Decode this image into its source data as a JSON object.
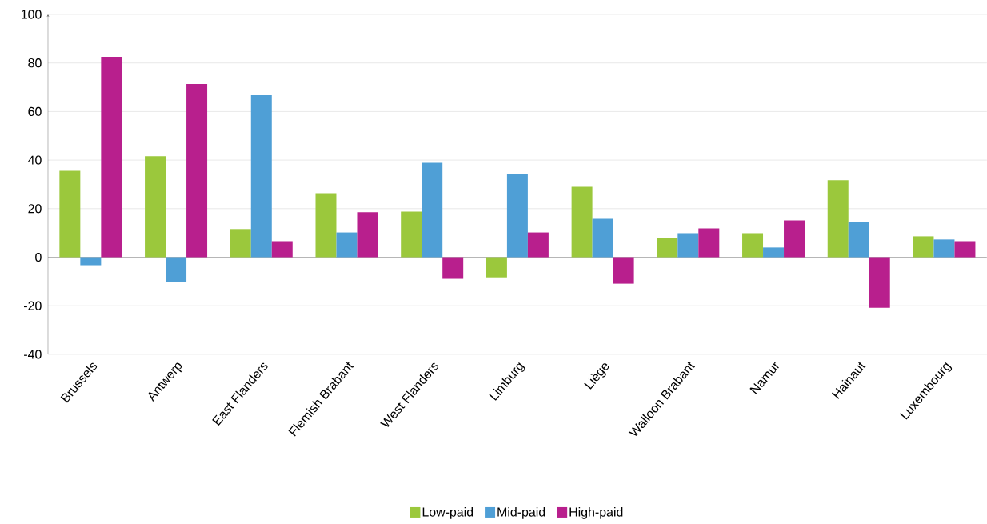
{
  "chart_data": {
    "type": "bar",
    "categories": [
      "Brussels",
      "Antwerp",
      "East Flanders",
      "Flemish Brabant",
      "West Flanders",
      "Limburg",
      "Liège",
      "Walloon Brabant",
      "Namur",
      "Hainaut",
      "Luxembourg"
    ],
    "series": [
      {
        "name": "Low-paid",
        "color": "#9bc83c",
        "values": [
          35.6,
          41.6,
          11.6,
          26.4,
          18.8,
          -8.3,
          29,
          7.9,
          9.9,
          31.7,
          8.6
        ]
      },
      {
        "name": "Mid-paid",
        "color": "#4f9fd6",
        "values": [
          -3.3,
          -10.2,
          66.7,
          10.2,
          38.9,
          34.3,
          15.8,
          9.9,
          4,
          14.5,
          7.3
        ]
      },
      {
        "name": "High-paid",
        "color": "#b81f8d",
        "values": [
          82.5,
          71.3,
          6.6,
          18.5,
          -8.9,
          10.2,
          -10.9,
          11.9,
          15.2,
          -20.8,
          6.6
        ]
      }
    ],
    "ylim": [
      -40,
      100
    ],
    "yticks": [
      -40,
      -20,
      0,
      20,
      40,
      60,
      80,
      100
    ],
    "grid": "y",
    "legend": "bottom"
  }
}
